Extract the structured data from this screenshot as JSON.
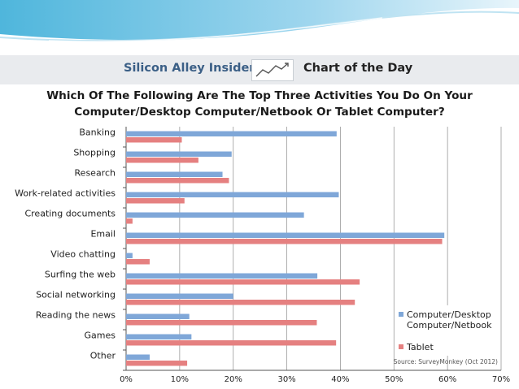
{
  "header": {
    "brand": "Silicon Alley Insider",
    "badge": "Chart of the Day",
    "brand_color": "#3b5f86",
    "band_color": "#e9ebee"
  },
  "chart_data": {
    "type": "bar",
    "orientation": "horizontal",
    "title_lines": [
      "Which Of The Following Are The Top Three Activities You Do On Your",
      "Computer/Desktop Computer/Netbook Or Tablet Computer?"
    ],
    "categories": [
      "Banking",
      "Shopping",
      "Research",
      "Work-related activities",
      "Creating documents",
      "Email",
      "Video chatting",
      "Surfing the web",
      "Social networking",
      "Reading the news",
      "Games",
      "Other"
    ],
    "series": [
      {
        "name": "Computer/Desktop\nComputer/Netbook",
        "legend_lines": [
          "Computer/Desktop",
          "Computer/Netbook"
        ],
        "color": "#7fa7d8",
        "values": [
          39.3,
          19.7,
          18.0,
          39.7,
          33.2,
          59.4,
          1.2,
          35.7,
          20.0,
          11.8,
          12.2,
          4.4
        ]
      },
      {
        "name": "Tablet",
        "legend_lines": [
          "Tablet"
        ],
        "color": "#e58080",
        "values": [
          10.4,
          13.5,
          19.2,
          10.9,
          1.2,
          59.0,
          4.4,
          43.6,
          42.7,
          35.6,
          39.2,
          11.4
        ]
      }
    ],
    "xlim": [
      0,
      70
    ],
    "ticks": [
      "0%",
      "10%",
      "20%",
      "30%",
      "40%",
      "50%",
      "60%",
      "70%"
    ],
    "tick_values": [
      0,
      10,
      20,
      30,
      40,
      50,
      60,
      70
    ],
    "grid": true,
    "legend_position": "bottom-right",
    "source": "Source: SurveyMonkey (Oct 2012)"
  }
}
